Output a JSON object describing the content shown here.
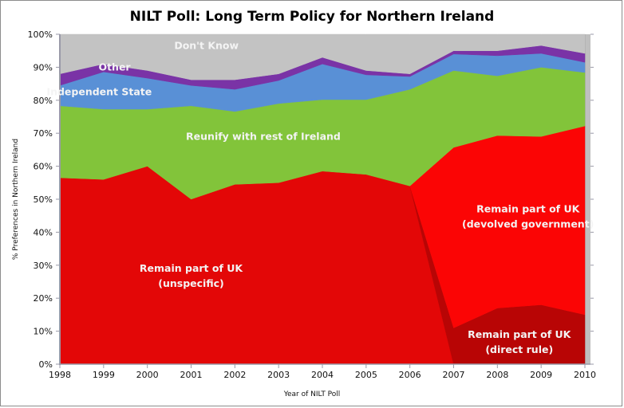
{
  "chart_data": {
    "type": "area",
    "stacked": true,
    "title": "NILT Poll: Long Term Policy for Northern Ireland",
    "xlabel": "Year of NILT Poll",
    "ylabel": "% Preferences in Northern Ireland",
    "ylim": [
      0,
      100
    ],
    "yticks": [
      "0%",
      "10%",
      "20%",
      "30%",
      "40%",
      "50%",
      "60%",
      "70%",
      "80%",
      "90%",
      "100%"
    ],
    "categories": [
      "1998",
      "1999",
      "2000",
      "2001",
      "2002",
      "2003",
      "2004",
      "2005",
      "2006",
      "2007",
      "2008",
      "2009",
      "2010"
    ],
    "grid": false,
    "legend": "none (inline area labels)",
    "series": [
      {
        "name": "Remain part of UK (unspecific)",
        "label_lines": [
          "Remain part of UK",
          "(unspecific)"
        ],
        "color": "#e30707",
        "values": [
          56.5,
          56.0,
          60.0,
          50.0,
          54.5,
          55.0,
          58.5,
          57.5,
          54.0,
          0,
          0,
          0,
          0
        ]
      },
      {
        "name": "Remain part of UK (direct rule)",
        "label_lines": [
          "Remain part of UK",
          "(direct rule)"
        ],
        "color": "#b80505",
        "values": [
          0,
          0,
          0,
          0,
          0,
          0,
          0,
          0,
          0,
          11.0,
          17.0,
          18.0,
          15.0
        ]
      },
      {
        "name": "Remain part of UK (devolved government)",
        "label_lines": [
          "Remain part of UK",
          "(devolved government)"
        ],
        "color": "#fb0505",
        "values": [
          0,
          0,
          0,
          0,
          0,
          0,
          0,
          0,
          0,
          54.7,
          52.3,
          51.0,
          57.2
        ]
      },
      {
        "name": "Reunify with rest of Ireland",
        "label_lines": [
          "Reunify with rest of Ireland"
        ],
        "color": "#82c43a",
        "values": [
          21.8,
          21.3,
          17.3,
          28.3,
          22.1,
          24.0,
          21.7,
          22.7,
          29.3,
          23.3,
          18.1,
          21.0,
          16.2
        ]
      },
      {
        "name": "Independent State",
        "label_lines": [
          "Independent State"
        ],
        "color": "#5990d6",
        "values": [
          6.2,
          11.3,
          9.4,
          6.2,
          6.7,
          7.0,
          10.8,
          7.5,
          3.9,
          5.0,
          6.1,
          4.2,
          3.1
        ]
      },
      {
        "name": "Other",
        "label_lines": [
          "Other"
        ],
        "color": "#7a33a6",
        "values": [
          3.5,
          2.4,
          2.3,
          1.7,
          2.9,
          2.0,
          2.0,
          1.3,
          0.8,
          1.0,
          1.5,
          2.4,
          2.7
        ]
      },
      {
        "name": "Don't Know",
        "label_lines": [
          "Don't Know"
        ],
        "color": "#c3c3c3",
        "values": [
          12.0,
          9.0,
          11.0,
          13.8,
          13.8,
          12.0,
          7.0,
          11.0,
          12.0,
          5.0,
          5.0,
          3.4,
          5.8
        ]
      }
    ]
  }
}
